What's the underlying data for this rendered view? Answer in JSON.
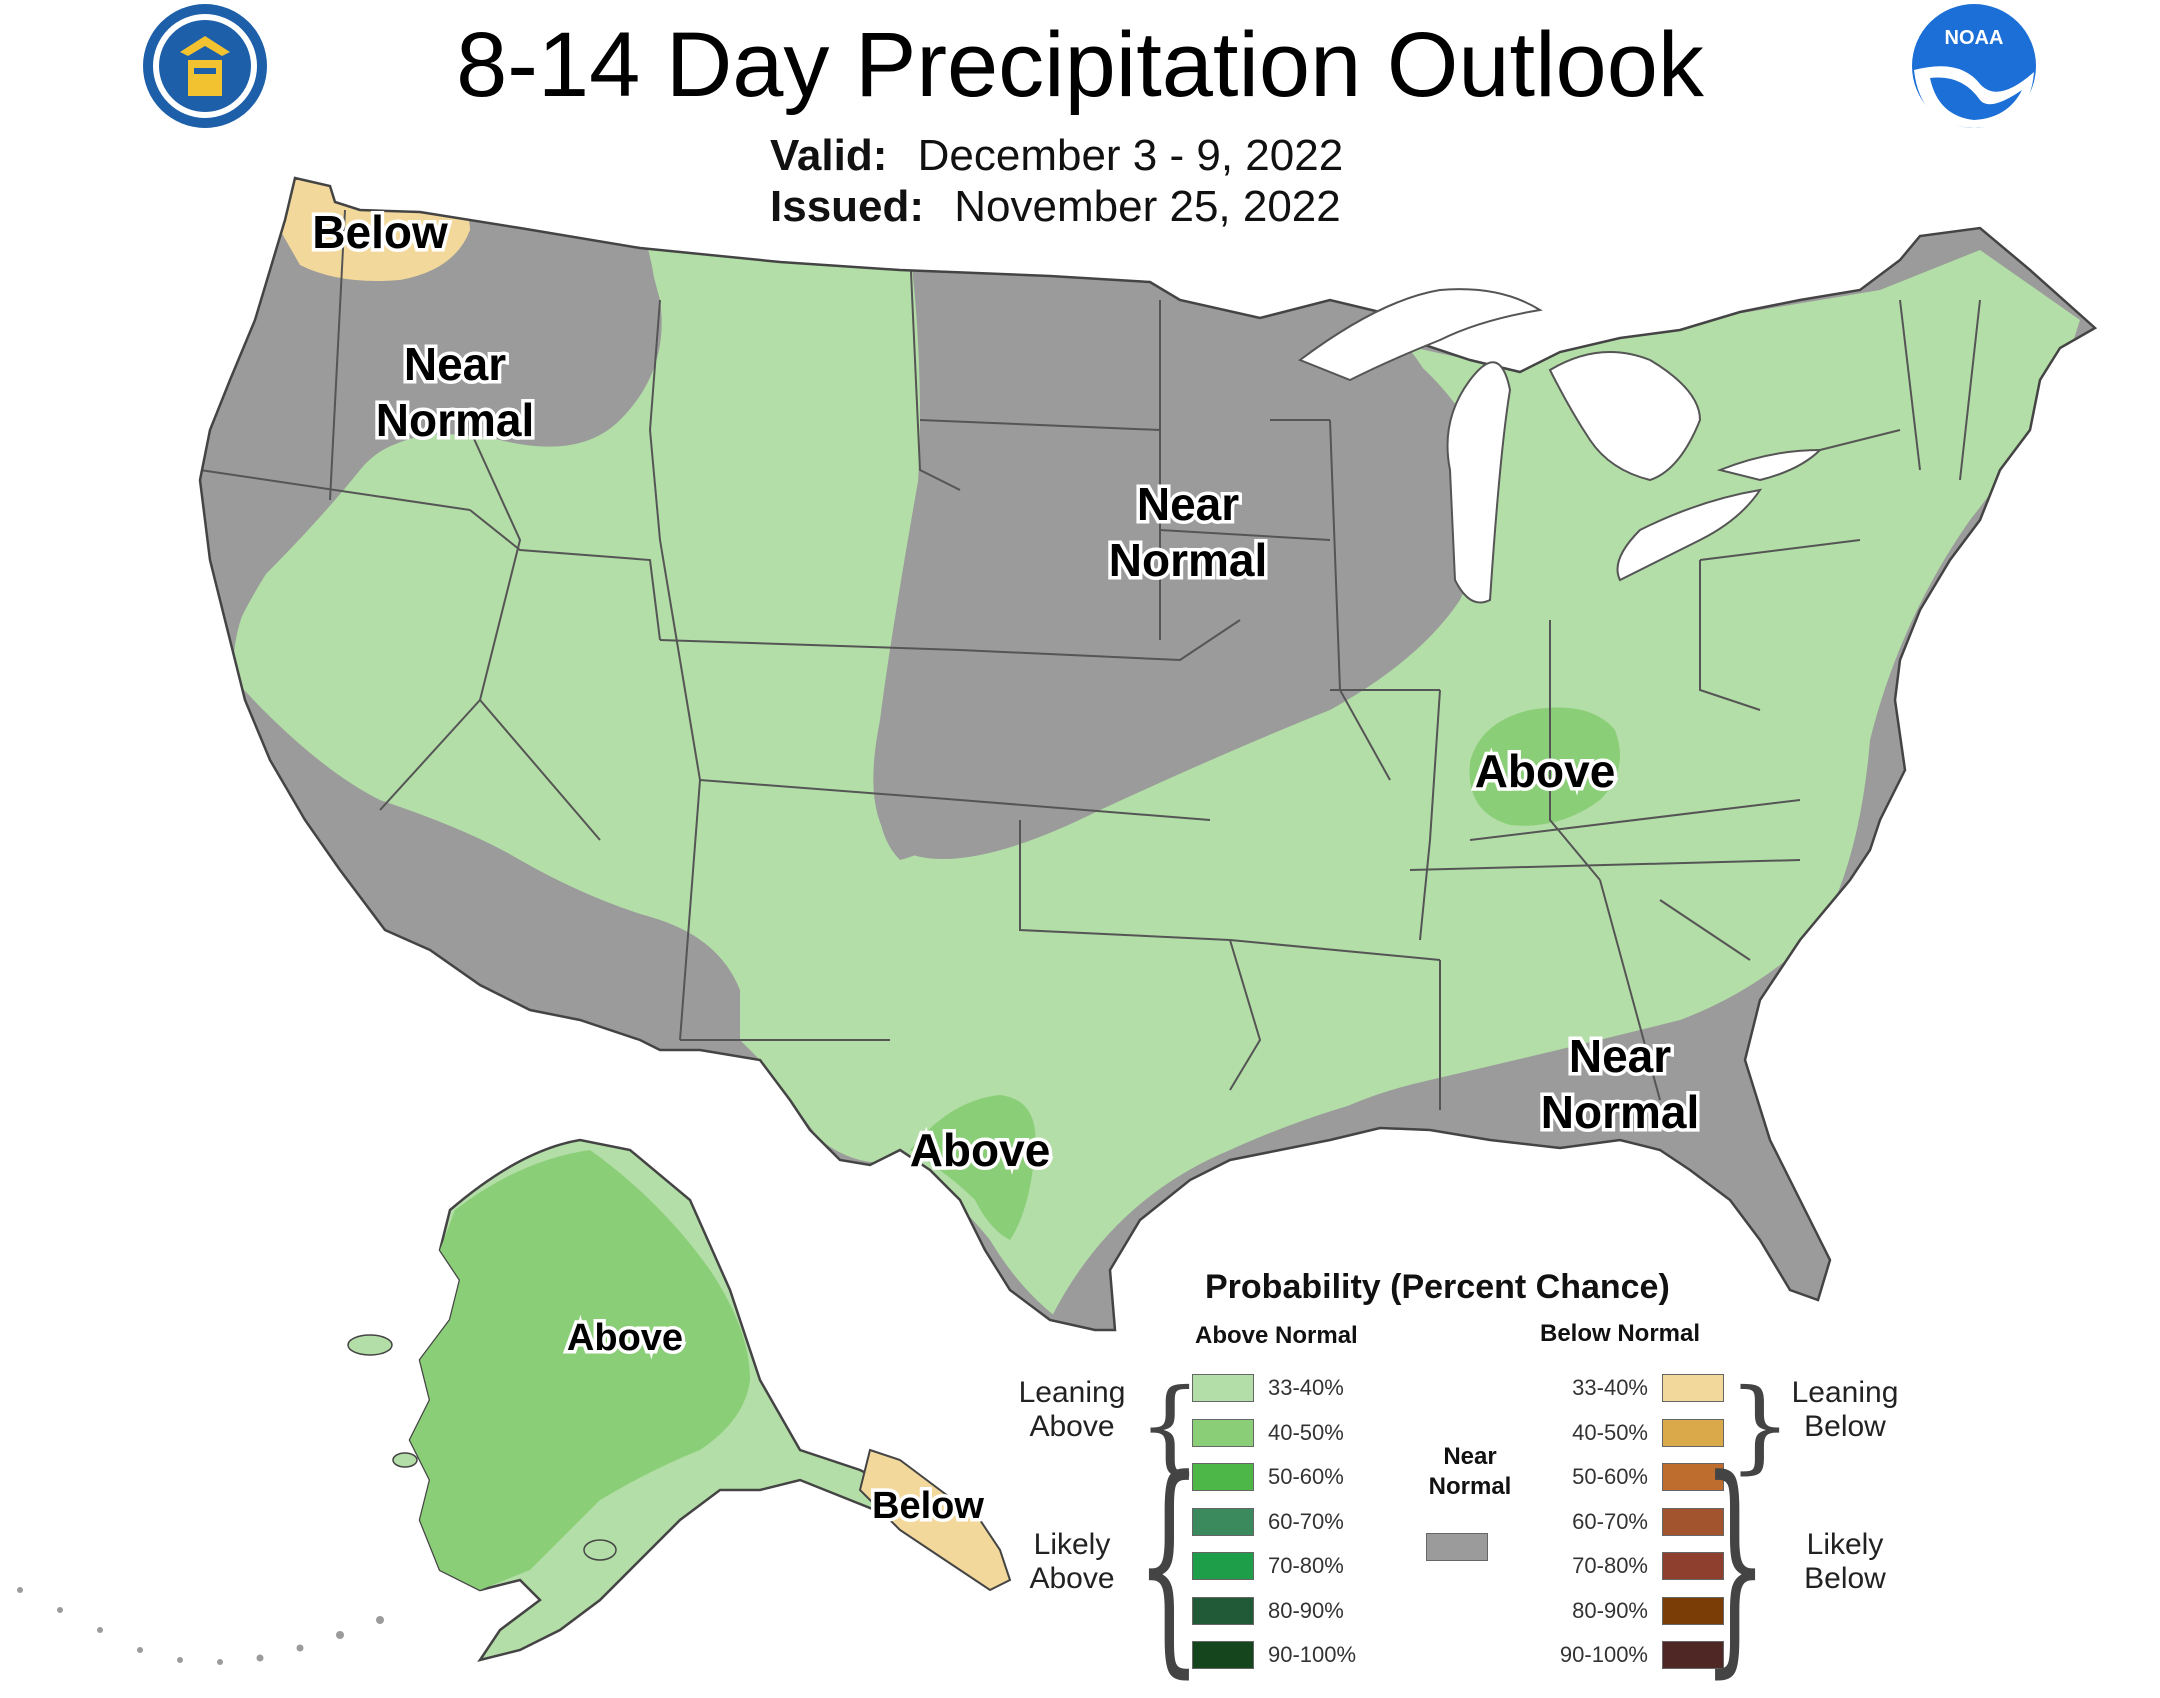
{
  "header": {
    "title": "8-14 Day Precipitation Outlook",
    "valid_label": "Valid:",
    "valid_value": "December 3 - 9, 2022",
    "issued_label": "Issued:",
    "issued_value": "November 25, 2022"
  },
  "logos": {
    "left": {
      "icon": "doc-seal-icon"
    },
    "right": {
      "icon": "noaa-logo-icon",
      "text": "NOAA"
    }
  },
  "map_labels": {
    "below_pnw": "Below",
    "near_normal_nw_1": "Near",
    "near_normal_nw_2": "Normal",
    "near_normal_central_1": "Near",
    "near_normal_central_2": "Normal",
    "above_ohio": "Above",
    "near_normal_se_1": "Near",
    "near_normal_se_2": "Normal",
    "above_texas": "Above",
    "above_alaska": "Above",
    "below_alaska": "Below"
  },
  "legend": {
    "title": "Probability (Percent Chance)",
    "above_header": "Above Normal",
    "below_header": "Below Normal",
    "leaning_above": [
      "Leaning",
      "Above"
    ],
    "likely_above": [
      "Likely",
      "Above"
    ],
    "leaning_below": [
      "Leaning",
      "Below"
    ],
    "likely_below": [
      "Likely",
      "Below"
    ],
    "near_normal": [
      "Near",
      "Normal"
    ],
    "near_normal_color": "#9b9b9b",
    "above_bins": [
      {
        "label": "33-40%",
        "color": "#b3dea7"
      },
      {
        "label": "40-50%",
        "color": "#8bce78"
      },
      {
        "label": "50-60%",
        "color": "#4db848"
      },
      {
        "label": "60-70%",
        "color": "#3a8a5e"
      },
      {
        "label": "70-80%",
        "color": "#1e9e48"
      },
      {
        "label": "80-90%",
        "color": "#215a36"
      },
      {
        "label": "90-100%",
        "color": "#14451c"
      }
    ],
    "below_bins": [
      {
        "label": "33-40%",
        "color": "#f3d89c"
      },
      {
        "label": "40-50%",
        "color": "#d9a94a"
      },
      {
        "label": "50-60%",
        "color": "#bf6d2e"
      },
      {
        "label": "60-70%",
        "color": "#a2542e"
      },
      {
        "label": "70-80%",
        "color": "#8f3f2d"
      },
      {
        "label": "80-90%",
        "color": "#7a3d05"
      },
      {
        "label": "90-100%",
        "color": "#4f2826"
      }
    ]
  },
  "colors": {
    "near_normal": "#9b9b9b",
    "leaning_above_33_40": "#b3dea7",
    "above_40_50": "#8bce78",
    "below_33_40": "#f3d89c",
    "state_border": "#555555",
    "lakes": "#ffffff"
  }
}
